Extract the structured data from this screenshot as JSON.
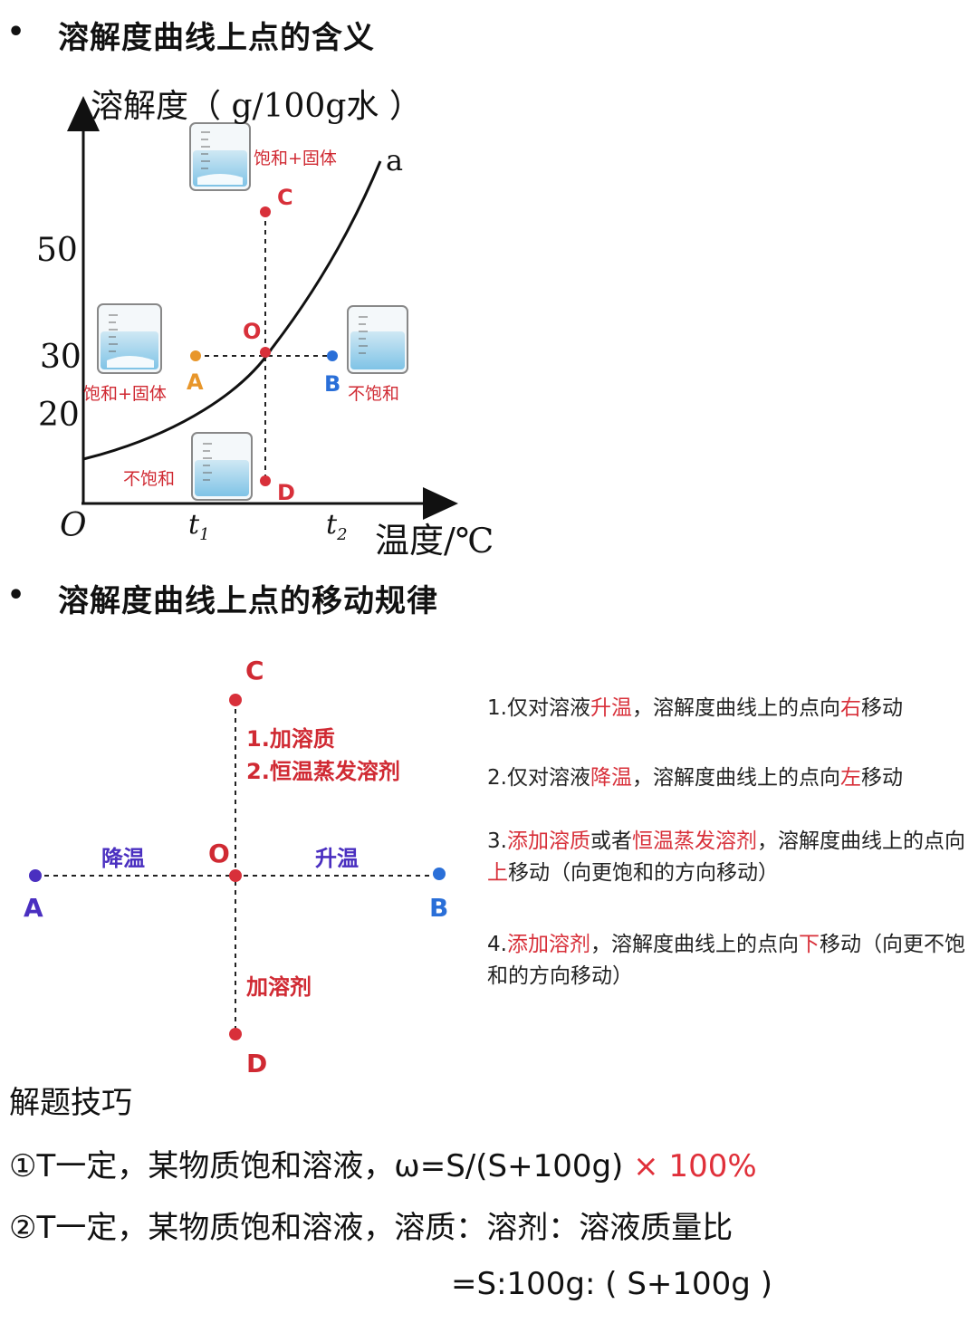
{
  "section1": {
    "bullet": "•",
    "title": "溶解度曲线上点的含义"
  },
  "graph": {
    "ylabel": "溶解度（ g/100g水 ）",
    "xlabel": "温度/℃",
    "origin": "O",
    "yticks": [
      "50",
      "30",
      "20"
    ],
    "xtick1": "t",
    "xtick1_sub": "1",
    "xtick2": "t",
    "xtick2_sub": "2",
    "curve_label": "a",
    "points": {
      "C": "C",
      "O": "O",
      "A": "A",
      "B": "B",
      "D": "D"
    },
    "beakers": {
      "top": "饱和+固体",
      "left": "饱和+固体",
      "right": "不饱和",
      "bottom": "不饱和"
    }
  },
  "section2": {
    "bullet": "•",
    "title": "溶解度曲线上点的移动规律"
  },
  "diagram": {
    "C": "C",
    "D": "D",
    "A": "A",
    "B": "B",
    "O": "O",
    "up_line1": "1.加溶质",
    "up_line2": "2.恒温蒸发溶剂",
    "left": "降温",
    "right": "升温",
    "down": "加溶剂"
  },
  "rules": {
    "r1": {
      "a": "1.仅对溶液",
      "b": "升温",
      "c": "，溶解度曲线上的点向",
      "d": "右",
      "e": "移动"
    },
    "r2": {
      "a": "2.仅对溶液",
      "b": "降温",
      "c": "，溶解度曲线上的点向",
      "d": "左",
      "e": "移动"
    },
    "r3": {
      "a": "3.",
      "b": "添加溶质",
      "c": "或者",
      "d": "恒温蒸发溶剂",
      "e": "，溶解度曲线上的点向",
      "f": "上",
      "g": "移动（向更饱和的方向移动）"
    },
    "r4": {
      "a": "4.",
      "b": "添加溶剂",
      "c": "，溶解度曲线上的点向",
      "d": "下",
      "e": "移动（向更不饱和的方向移动）"
    }
  },
  "tips": {
    "title": "解题技巧",
    "t1_main": "①T一定，某物质饱和溶液，ω=S/(S+100g)",
    "t1_red": "× 100%",
    "t2_main": "②T一定，某物质饱和溶液，溶质：溶剂：溶液质量比",
    "t2_cont": "=S:100g: ( S+100g )"
  },
  "colors": {
    "red": "#d8303a",
    "orange": "#e8962a",
    "blue": "#2a6fd8",
    "purple": "#4a2fc0",
    "diagram_red": "#d02a33"
  }
}
